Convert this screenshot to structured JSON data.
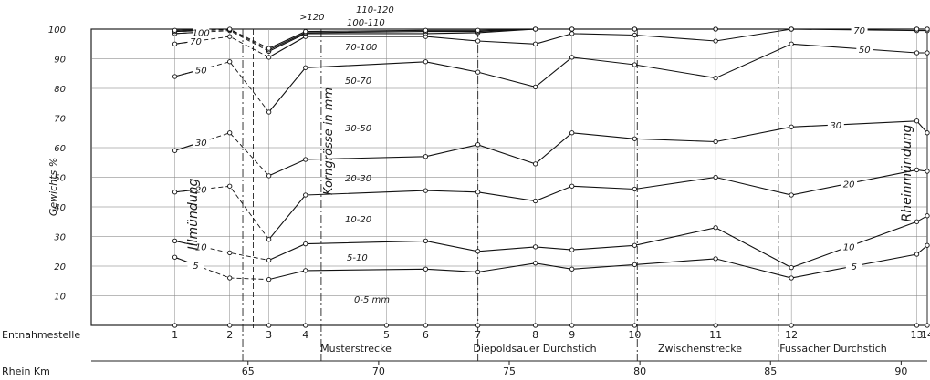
{
  "chart_data": {
    "type": "line",
    "ylabel": "Gewichts %",
    "ylim": [
      0,
      100
    ],
    "y_ticks": [
      "10",
      "20",
      "30",
      "40",
      "50",
      "60",
      "70",
      "80",
      "90",
      "100"
    ],
    "row_labels": {
      "stations": "Entnahmestelle",
      "km": "Rhein Km"
    },
    "stations": [
      {
        "label": "1",
        "km": 62.2
      },
      {
        "label": "2",
        "km": 64.3
      },
      {
        "label": "3",
        "km": 65.8
      },
      {
        "label": "4",
        "km": 67.2
      },
      {
        "label": "5",
        "km": 70.3
      },
      {
        "label": "6",
        "km": 71.8
      },
      {
        "label": "7",
        "km": 73.8
      },
      {
        "label": "8",
        "km": 76.0
      },
      {
        "label": "9",
        "km": 77.4
      },
      {
        "label": "10",
        "km": 79.8
      },
      {
        "label": "11",
        "km": 82.9
      },
      {
        "label": "12",
        "km": 85.8
      },
      {
        "label": "13",
        "km": 90.6
      },
      {
        "label": "14",
        "km": 91.0
      }
    ],
    "km_ticks": [
      "65",
      "70",
      "75",
      "80",
      "85",
      "90"
    ],
    "km_range": [
      59.0,
      91.0
    ],
    "section_boundaries_km": [
      64.8,
      67.8,
      73.8,
      79.9,
      85.3
    ],
    "sections": [
      "Musterstrecke",
      "Diepoldsauer Durchstich",
      "Zwischenstrecke",
      "Fussacher Durchstich"
    ],
    "annotations": {
      "ill": "Illmündung",
      "rhein": "Rheinmündung",
      "grain": "Korngrösse in mm"
    },
    "fraction_labels": [
      "0-5 mm",
      "5-10",
      "10-20",
      "20-30",
      "30-50",
      "50-70",
      "70-100",
      "100-110",
      "110-120",
      ">120"
    ],
    "ill_km": 65.2,
    "series": [
      {
        "name": "5",
        "x": [
          62.2,
          64.3,
          65.8,
          67.2,
          71.8,
          73.8,
          76.0,
          77.4,
          79.8,
          82.9,
          85.8,
          90.6,
          91.0
        ],
        "y": [
          23,
          16,
          15.5,
          18.5,
          19,
          18,
          21,
          19,
          20.5,
          22.5,
          16,
          24,
          27
        ]
      },
      {
        "name": "10",
        "x": [
          62.2,
          64.3,
          65.8,
          67.2,
          71.8,
          73.8,
          76.0,
          77.4,
          79.8,
          82.9,
          85.8,
          90.6,
          91.0
        ],
        "y": [
          28.5,
          24.5,
          22,
          27.5,
          28.5,
          25,
          26.5,
          25.5,
          27,
          33,
          19.5,
          35,
          37
        ]
      },
      {
        "name": "20",
        "x": [
          62.2,
          64.3,
          65.8,
          67.2,
          71.8,
          73.8,
          76.0,
          77.4,
          79.8,
          82.9,
          85.8,
          90.6,
          91.0
        ],
        "y": [
          45,
          47,
          29,
          44,
          45.5,
          45,
          42,
          47,
          46,
          50,
          44,
          52.5,
          52
        ]
      },
      {
        "name": "30",
        "x": [
          62.2,
          64.3,
          65.8,
          67.2,
          71.8,
          73.8,
          76.0,
          77.4,
          79.8,
          82.9,
          85.8,
          90.6,
          91.0
        ],
        "y": [
          59,
          65,
          50.5,
          56,
          57,
          61,
          54.5,
          65,
          63,
          62,
          67,
          69,
          65
        ]
      },
      {
        "name": "50",
        "x": [
          62.2,
          64.3,
          65.8,
          67.2,
          71.8,
          73.8,
          76.0,
          77.4,
          79.8,
          82.9,
          85.8,
          90.6,
          91.0
        ],
        "y": [
          84,
          89,
          72,
          87,
          89,
          85.5,
          80.5,
          90.5,
          88,
          83.5,
          95,
          92,
          92
        ]
      },
      {
        "name": "70",
        "x": [
          62.2,
          64.3,
          65.8,
          67.2,
          71.8,
          73.8,
          76.0,
          77.4,
          79.8,
          82.9,
          85.8,
          90.6,
          91.0
        ],
        "y": [
          95,
          97.5,
          90.5,
          97.5,
          97.5,
          96,
          95,
          98.5,
          98,
          96,
          100,
          99.5,
          99.5
        ]
      },
      {
        "name": "100",
        "x": [
          62.2,
          64.3,
          65.8,
          67.2,
          71.8,
          73.8,
          76.0,
          77.4,
          79.8,
          82.9,
          85.8,
          90.6,
          91.0
        ],
        "y": [
          98.5,
          99.5,
          92.5,
          98.5,
          98.5,
          98.8,
          100,
          100,
          100,
          100,
          100,
          100,
          100
        ]
      },
      {
        "name": "110",
        "x": [
          62.2,
          64.3,
          65.8,
          67.2,
          71.8,
          73.8,
          76.0,
          77.4,
          79.8,
          82.9,
          85.8,
          90.6,
          91.0
        ],
        "y": [
          99.2,
          99.8,
          93,
          98.8,
          99.2,
          99.2,
          100,
          100,
          100,
          100,
          100,
          100,
          100
        ]
      },
      {
        "name": "120",
        "x": [
          62.2,
          64.3,
          65.8,
          67.2,
          71.8,
          73.8,
          76.0,
          77.4,
          79.8,
          82.9,
          85.8,
          90.6,
          91.0
        ],
        "y": [
          99.6,
          100,
          93.5,
          99.2,
          99.6,
          99.6,
          100,
          100,
          100,
          100,
          100,
          100,
          100
        ]
      }
    ],
    "curve_labels": [
      {
        "text": "5",
        "series": "5",
        "km": 63.0
      },
      {
        "text": "5",
        "series": "5",
        "km": 88.2
      },
      {
        "text": "10",
        "series": "10",
        "km": 63.2
      },
      {
        "text": "10",
        "series": "10",
        "km": 88.0
      },
      {
        "text": "20",
        "series": "20",
        "km": 63.2
      },
      {
        "text": "20",
        "series": "20",
        "km": 88.0
      },
      {
        "text": "30",
        "series": "30",
        "km": 63.2
      },
      {
        "text": "30",
        "series": "30",
        "km": 87.5
      },
      {
        "text": "50",
        "series": "50",
        "km": 63.2
      },
      {
        "text": "50",
        "series": "50",
        "km": 88.6
      },
      {
        "text": "70",
        "series": "70",
        "km": 63.0
      },
      {
        "text": "70",
        "series": "70",
        "km": 88.4
      },
      {
        "text": "100",
        "series": "100",
        "km": 63.2
      }
    ],
    "grid": true
  }
}
